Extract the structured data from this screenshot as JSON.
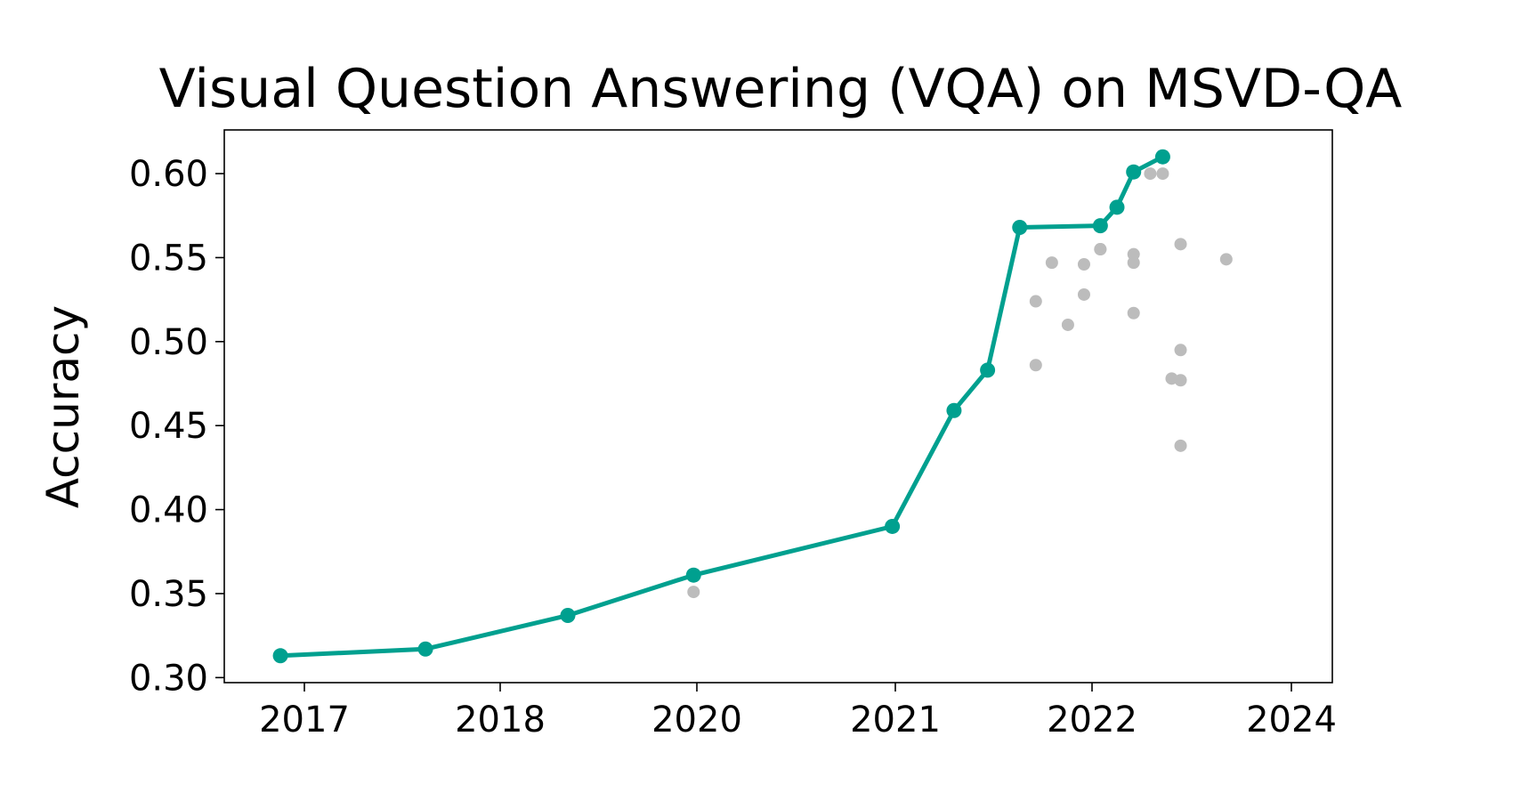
{
  "chart_data": {
    "type": "scatter",
    "title": "Visual Question Answering (VQA) on MSVD-QA",
    "xlabel": "",
    "ylabel": "Accuracy",
    "x_ticks": [
      "2017",
      "2018",
      "2020",
      "2021",
      "2022",
      "2024"
    ],
    "y_ticks": [
      "0.30",
      "0.35",
      "0.40",
      "0.45",
      "0.50",
      "0.55",
      "0.60"
    ],
    "ylim": [
      0.297,
      0.626
    ],
    "grid": false,
    "legend": "none",
    "colors": {
      "frontier": "#00a08f",
      "other": "#bcbcbc"
    },
    "series": [
      {
        "role": "state-of-the-art frontier",
        "points": [
          {
            "x": "2016-11",
            "y": 0.313
          },
          {
            "x": "2017-08",
            "y": 0.317
          },
          {
            "x": "2018-05",
            "y": 0.337
          },
          {
            "x": "2019-12",
            "y": 0.361
          },
          {
            "x": "2020-12",
            "y": 0.39
          },
          {
            "x": "2021-04",
            "y": 0.459
          },
          {
            "x": "2021-06",
            "y": 0.483
          },
          {
            "x": "2021-08",
            "y": 0.568
          },
          {
            "x": "2022-01",
            "y": 0.569
          },
          {
            "x": "2022-02",
            "y": 0.58
          },
          {
            "x": "2022-03",
            "y": 0.601
          },
          {
            "x": "2022-05",
            "y": 0.61
          }
        ]
      },
      {
        "role": "other results",
        "points": [
          {
            "x": "2019-12",
            "y": 0.351
          },
          {
            "x": "2021-09",
            "y": 0.524
          },
          {
            "x": "2021-09",
            "y": 0.486
          },
          {
            "x": "2021-10",
            "y": 0.547
          },
          {
            "x": "2021-11",
            "y": 0.51
          },
          {
            "x": "2021-12",
            "y": 0.546
          },
          {
            "x": "2021-12",
            "y": 0.528
          },
          {
            "x": "2022-01",
            "y": 0.555
          },
          {
            "x": "2022-01",
            "y": 0.555
          },
          {
            "x": "2022-03",
            "y": 0.547
          },
          {
            "x": "2022-03",
            "y": 0.552
          },
          {
            "x": "2022-03",
            "y": 0.517
          },
          {
            "x": "2022-04",
            "y": 0.6
          },
          {
            "x": "2022-05",
            "y": 0.6
          },
          {
            "x": "2022-06",
            "y": 0.478
          },
          {
            "x": "2022-07",
            "y": 0.558
          },
          {
            "x": "2022-07",
            "y": 0.495
          },
          {
            "x": "2022-07",
            "y": 0.477
          },
          {
            "x": "2022-07",
            "y": 0.438
          },
          {
            "x": "2022-12",
            "y": 0.549
          }
        ]
      }
    ]
  }
}
